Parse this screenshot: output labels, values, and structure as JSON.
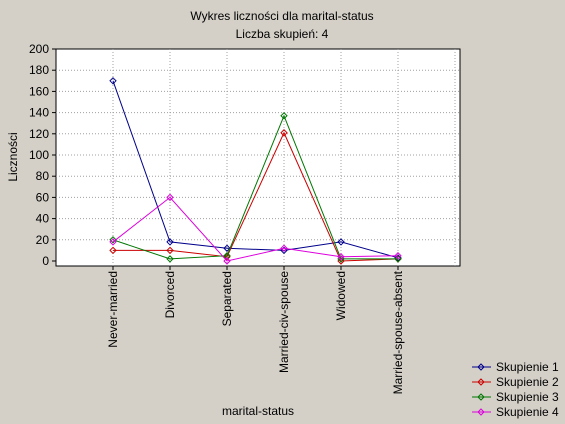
{
  "chart_data": {
    "type": "line",
    "title": "Wykres liczności dla marital-status",
    "subtitle": "Liczba skupień: 4",
    "xlabel": "marital-status",
    "ylabel": "Liczności",
    "categories": [
      "Never-married",
      "Divorced",
      "Separated",
      "Married-civ-spouse",
      "Widowed",
      "Married-spouse-absent"
    ],
    "ylim": [
      0,
      200
    ],
    "yticks": [
      0,
      20,
      40,
      60,
      80,
      100,
      120,
      140,
      160,
      180,
      200
    ],
    "grid": true,
    "legend_position": "bottom-right",
    "series": [
      {
        "name": "Skupienie 1",
        "color": "#00008b",
        "values": [
          170,
          18,
          12,
          10,
          18,
          3
        ]
      },
      {
        "name": "Skupienie 2",
        "color": "#cc0000",
        "values": [
          10,
          10,
          4,
          121,
          0,
          2
        ]
      },
      {
        "name": "Skupienie 3",
        "color": "#007700",
        "values": [
          20,
          2,
          5,
          137,
          2,
          2
        ]
      },
      {
        "name": "Skupienie 4",
        "color": "#dd00dd",
        "values": [
          18,
          60,
          0,
          12,
          4,
          5
        ]
      }
    ]
  }
}
